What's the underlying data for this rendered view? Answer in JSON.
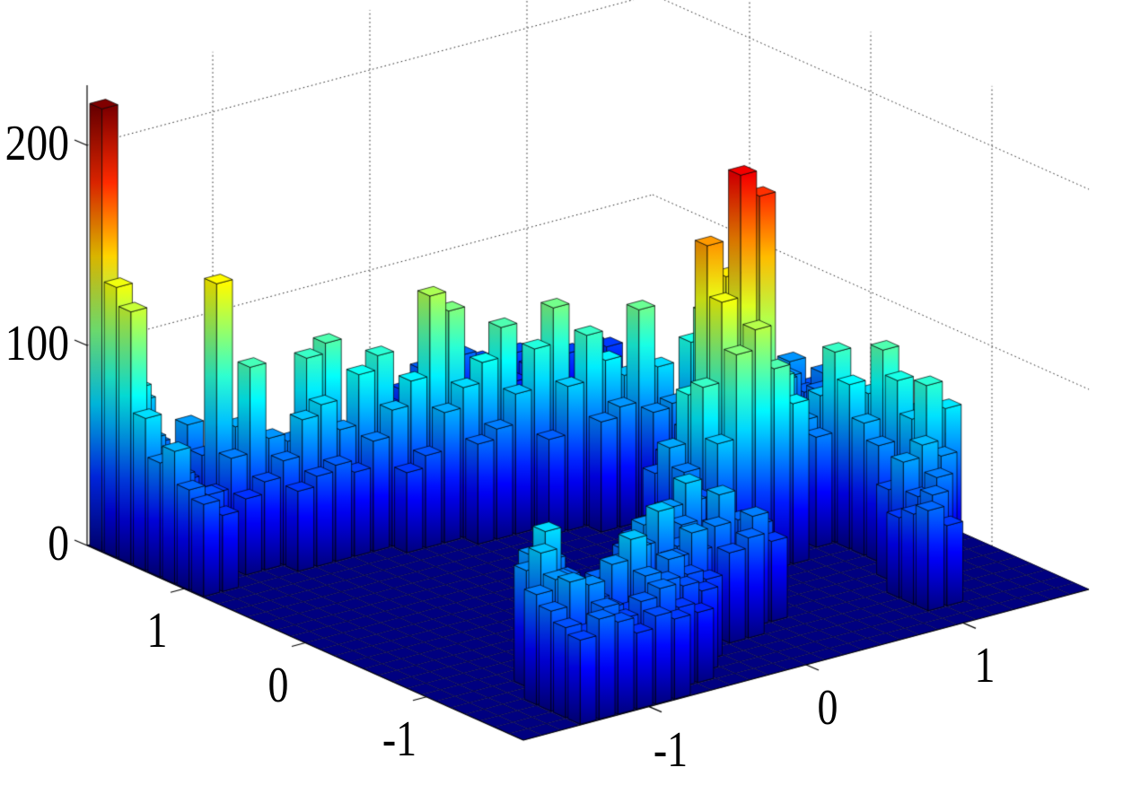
{
  "chart_data": {
    "type": "bar3d-histogram",
    "title": "",
    "xlabel": "",
    "ylabel": "",
    "zlabel": "",
    "x_range": [
      -1.8,
      1.8
    ],
    "y_range": [
      -1.8,
      1.8
    ],
    "z_range": [
      0,
      230
    ],
    "nx": 30,
    "ny": 30,
    "grid_style": "dotted",
    "legend": "none",
    "colormap": "jet",
    "color_max": 221,
    "max_height": 221,
    "background": "#ffffff",
    "floor_color": "#000080",
    "edge_color": "#000000",
    "x_ticks": {
      "values": [
        -1,
        0,
        1
      ],
      "labels": [
        "-1",
        "0",
        "1"
      ]
    },
    "y_ticks": {
      "values": [
        1,
        0,
        -1
      ],
      "labels": [
        "1",
        "0",
        "-1"
      ]
    },
    "z_ticks": {
      "values": [
        0,
        100,
        200
      ],
      "labels": [
        "0",
        "100",
        "200"
      ]
    },
    "bars": [
      [
        0,
        29,
        221
      ],
      [
        1,
        29,
        92
      ],
      [
        2,
        29,
        70
      ],
      [
        0,
        28,
        135
      ],
      [
        1,
        28,
        82
      ],
      [
        2,
        28,
        52
      ],
      [
        0,
        27,
        126
      ],
      [
        1,
        27,
        60
      ],
      [
        2,
        27,
        48
      ],
      [
        0,
        26,
        76
      ],
      [
        1,
        26,
        55
      ],
      [
        2,
        26,
        40
      ],
      [
        0,
        25,
        57
      ],
      [
        1,
        25,
        48
      ],
      [
        2,
        25,
        36
      ],
      [
        0,
        24,
        66
      ],
      [
        1,
        24,
        42
      ],
      [
        2,
        24,
        40
      ],
      [
        0,
        23,
        50
      ],
      [
        1,
        23,
        45
      ],
      [
        0,
        22,
        46
      ],
      [
        1,
        22,
        38
      ],
      [
        3,
        27,
        62
      ],
      [
        3,
        26,
        50
      ],
      [
        3,
        25,
        139
      ],
      [
        3,
        24,
        55
      ],
      [
        3,
        23,
        38
      ],
      [
        4,
        26,
        58
      ],
      [
        4,
        25,
        65
      ],
      [
        4,
        24,
        98
      ],
      [
        4,
        23,
        44
      ],
      [
        5,
        25,
        46
      ],
      [
        5,
        24,
        60
      ],
      [
        5,
        23,
        52
      ],
      [
        5,
        22,
        40
      ],
      [
        6,
        24,
        56
      ],
      [
        6,
        23,
        70
      ],
      [
        6,
        22,
        45
      ],
      [
        7,
        24,
        95
      ],
      [
        7,
        23,
        75
      ],
      [
        7,
        22,
        48
      ],
      [
        8,
        24,
        100
      ],
      [
        8,
        23,
        60
      ],
      [
        8,
        22,
        42
      ],
      [
        8,
        25,
        38
      ],
      [
        9,
        23,
        85
      ],
      [
        9,
        22,
        55
      ],
      [
        9,
        24,
        50
      ],
      [
        10,
        23,
        92
      ],
      [
        10,
        22,
        68
      ],
      [
        10,
        21,
        40
      ],
      [
        11,
        23,
        58
      ],
      [
        11,
        22,
        80
      ],
      [
        11,
        21,
        46
      ],
      [
        11,
        24,
        35
      ],
      [
        12,
        22,
        120
      ],
      [
        12,
        21,
        65
      ],
      [
        12,
        23,
        45
      ],
      [
        13,
        22,
        110
      ],
      [
        13,
        21,
        75
      ],
      [
        13,
        20,
        50
      ],
      [
        14,
        21,
        85
      ],
      [
        14,
        22,
        60
      ],
      [
        14,
        20,
        55
      ],
      [
        14,
        23,
        36
      ],
      [
        15,
        21,
        100
      ],
      [
        15,
        20,
        70
      ],
      [
        15,
        22,
        44
      ],
      [
        16,
        20,
        90
      ],
      [
        16,
        21,
        62
      ],
      [
        16,
        19,
        48
      ],
      [
        17,
        20,
        108
      ],
      [
        17,
        19,
        72
      ],
      [
        17,
        21,
        50
      ],
      [
        18,
        19,
        95
      ],
      [
        18,
        20,
        66
      ],
      [
        18,
        18,
        55
      ],
      [
        19,
        19,
        80
      ],
      [
        19,
        18,
        60
      ],
      [
        19,
        20,
        45
      ],
      [
        20,
        18,
        106
      ],
      [
        20,
        19,
        70
      ],
      [
        20,
        17,
        58
      ],
      [
        14,
        29,
        42
      ],
      [
        15,
        29,
        35
      ],
      [
        16,
        29,
        40
      ],
      [
        17,
        29,
        48
      ],
      [
        18,
        29,
        42
      ],
      [
        19,
        29,
        50
      ],
      [
        20,
        29,
        45
      ],
      [
        21,
        29,
        38
      ],
      [
        22,
        29,
        44
      ],
      [
        23,
        29,
        40
      ],
      [
        21,
        28,
        35
      ],
      [
        22,
        28,
        40
      ],
      [
        23,
        28,
        36
      ],
      [
        24,
        28,
        42
      ],
      [
        24,
        29,
        38
      ],
      [
        25,
        28,
        45
      ],
      [
        25,
        29,
        35
      ],
      [
        26,
        28,
        40
      ],
      [
        22,
        13,
        58
      ],
      [
        22,
        14,
        60
      ],
      [
        22,
        15,
        72
      ],
      [
        22,
        16,
        106
      ],
      [
        22,
        17,
        88
      ],
      [
        23,
        13,
        45
      ],
      [
        23,
        14,
        48
      ],
      [
        23,
        15,
        55
      ],
      [
        23,
        16,
        58
      ],
      [
        21,
        16,
        50
      ],
      [
        21,
        17,
        60
      ],
      [
        21,
        18,
        75
      ],
      [
        20,
        16,
        40
      ],
      [
        20,
        11,
        196
      ],
      [
        21,
        11,
        183
      ],
      [
        19,
        12,
        160
      ],
      [
        20,
        12,
        142
      ],
      [
        19,
        11,
        135
      ],
      [
        21,
        12,
        128
      ],
      [
        20,
        10,
        122
      ],
      [
        19,
        10,
        112
      ],
      [
        21,
        10,
        100
      ],
      [
        18,
        11,
        95
      ],
      [
        18,
        12,
        88
      ],
      [
        22,
        11,
        90
      ],
      [
        22,
        12,
        75
      ],
      [
        18,
        10,
        70
      ],
      [
        22,
        10,
        80
      ],
      [
        19,
        13,
        76
      ],
      [
        20,
        13,
        85
      ],
      [
        21,
        13,
        70
      ],
      [
        18,
        13,
        58
      ],
      [
        17,
        12,
        64
      ],
      [
        17,
        11,
        55
      ],
      [
        17,
        13,
        48
      ],
      [
        17,
        10,
        45
      ],
      [
        24,
        16,
        42
      ],
      [
        24,
        15,
        58
      ],
      [
        24,
        14,
        45
      ],
      [
        24,
        13,
        52
      ],
      [
        24,
        12,
        60
      ],
      [
        24,
        11,
        55
      ],
      [
        25,
        16,
        55
      ],
      [
        25,
        15,
        48
      ],
      [
        25,
        12,
        70
      ],
      [
        25,
        11,
        95
      ],
      [
        25,
        10,
        82
      ],
      [
        25,
        9,
        66
      ],
      [
        25,
        8,
        58
      ],
      [
        26,
        16,
        62
      ],
      [
        26,
        17,
        50
      ],
      [
        26,
        10,
        75
      ],
      [
        26,
        9,
        100
      ],
      [
        26,
        8,
        88
      ],
      [
        26,
        7,
        72
      ],
      [
        26,
        6,
        92
      ],
      [
        26,
        5,
        60
      ],
      [
        27,
        17,
        58
      ],
      [
        27,
        16,
        45
      ],
      [
        27,
        9,
        55
      ],
      [
        27,
        8,
        70
      ],
      [
        27,
        7,
        60
      ],
      [
        27,
        6,
        78
      ],
      [
        25,
        6,
        50
      ],
      [
        25,
        5,
        68
      ],
      [
        25,
        4,
        55
      ],
      [
        24,
        5,
        62
      ],
      [
        24,
        4,
        48
      ],
      [
        24,
        3,
        52
      ],
      [
        23,
        3,
        45
      ],
      [
        23,
        2,
        50
      ],
      [
        26,
        11,
        64
      ],
      [
        26,
        18,
        44
      ],
      [
        27,
        18,
        55
      ],
      [
        28,
        18,
        60
      ],
      [
        28,
        17,
        48
      ],
      [
        25,
        17,
        40
      ],
      [
        28,
        19,
        50
      ],
      [
        27,
        19,
        44
      ],
      [
        26,
        19,
        52
      ],
      [
        25,
        19,
        38
      ],
      [
        29,
        18,
        45
      ],
      [
        29,
        17,
        55
      ],
      [
        29,
        16,
        48
      ],
      [
        28,
        16,
        52
      ],
      [
        28,
        15,
        42
      ],
      [
        29,
        15,
        50
      ],
      [
        28,
        14,
        38
      ],
      [
        24,
        2,
        40
      ],
      [
        23,
        4,
        40
      ],
      [
        24,
        6,
        45
      ],
      [
        3,
        0,
        42
      ],
      [
        4,
        0,
        50
      ],
      [
        5,
        0,
        46
      ],
      [
        6,
        0,
        38
      ],
      [
        7,
        0,
        44
      ],
      [
        8,
        0,
        40
      ],
      [
        3,
        1,
        45
      ],
      [
        4,
        1,
        40
      ],
      [
        5,
        1,
        50
      ],
      [
        6,
        1,
        42
      ],
      [
        7,
        1,
        48
      ],
      [
        8,
        1,
        52
      ],
      [
        9,
        1,
        40
      ],
      [
        10,
        1,
        35
      ],
      [
        3,
        2,
        50
      ],
      [
        4,
        2,
        62
      ],
      [
        5,
        2,
        58
      ],
      [
        6,
        2,
        44
      ],
      [
        7,
        2,
        40
      ],
      [
        8,
        2,
        55
      ],
      [
        9,
        2,
        50
      ],
      [
        10,
        2,
        45
      ],
      [
        11,
        2,
        40
      ],
      [
        3,
        3,
        55
      ],
      [
        4,
        3,
        60
      ],
      [
        5,
        3,
        50
      ],
      [
        6,
        3,
        45
      ],
      [
        7,
        3,
        60
      ],
      [
        8,
        3,
        70
      ],
      [
        9,
        3,
        45
      ],
      [
        10,
        3,
        55
      ],
      [
        11,
        3,
        45
      ],
      [
        12,
        3,
        40
      ],
      [
        4,
        4,
        70
      ],
      [
        5,
        4,
        55
      ],
      [
        6,
        4,
        45
      ],
      [
        7,
        4,
        50
      ],
      [
        8,
        4,
        55
      ],
      [
        9,
        4,
        60
      ],
      [
        10,
        4,
        40
      ],
      [
        11,
        4,
        50
      ],
      [
        12,
        4,
        60
      ],
      [
        14,
        4,
        45
      ],
      [
        15,
        4,
        50
      ],
      [
        4,
        5,
        58
      ],
      [
        5,
        5,
        75
      ],
      [
        6,
        5,
        50
      ],
      [
        9,
        5,
        45
      ],
      [
        10,
        5,
        55
      ],
      [
        11,
        5,
        70
      ],
      [
        12,
        5,
        50
      ],
      [
        13,
        5,
        45
      ],
      [
        14,
        5,
        55
      ],
      [
        16,
        5,
        55
      ],
      [
        17,
        5,
        40
      ],
      [
        5,
        6,
        60
      ],
      [
        6,
        6,
        55
      ],
      [
        10,
        6,
        50
      ],
      [
        11,
        6,
        60
      ],
      [
        12,
        6,
        45
      ],
      [
        13,
        6,
        55
      ],
      [
        15,
        6,
        65
      ],
      [
        16,
        6,
        50
      ],
      [
        17,
        6,
        45
      ],
      [
        6,
        7,
        42
      ],
      [
        11,
        7,
        40
      ],
      [
        12,
        7,
        55
      ],
      [
        13,
        7,
        60
      ],
      [
        14,
        7,
        70
      ],
      [
        15,
        7,
        45
      ],
      [
        17,
        7,
        35
      ],
      [
        12,
        8,
        45
      ],
      [
        13,
        8,
        50
      ],
      [
        15,
        8,
        55
      ],
      [
        16,
        8,
        40
      ],
      [
        13,
        9,
        35
      ],
      [
        14,
        9,
        40
      ],
      [
        15,
        9,
        38
      ]
    ]
  }
}
